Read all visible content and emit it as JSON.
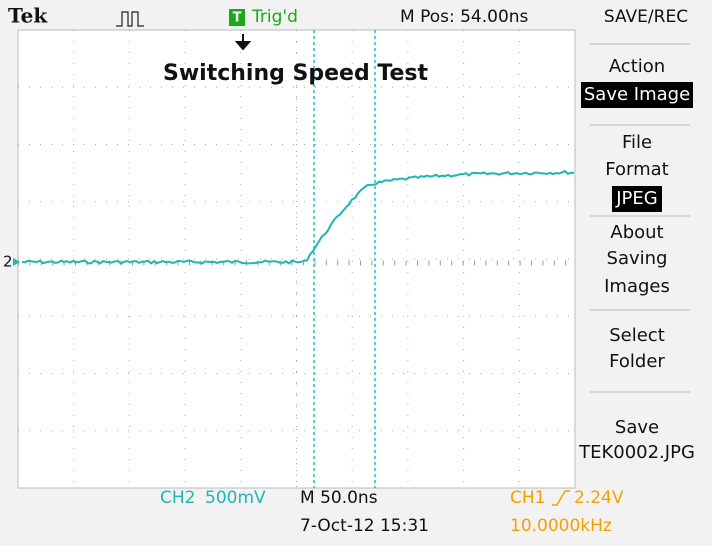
{
  "header": {
    "brand": "Tek",
    "trigger_badge": "T",
    "trigger_status": "Trig'd",
    "position": "M Pos: 54.00ns",
    "menu_title": "SAVE/REC"
  },
  "screen": {
    "title": "Switching Speed Test",
    "channel_marker": "2"
  },
  "menu": [
    {
      "lines": [
        "Action"
      ],
      "highlight": "Save Image"
    },
    {
      "lines": [
        "File",
        "Format"
      ],
      "highlight": "JPEG"
    },
    {
      "lines": [
        "About",
        "Saving",
        "Images"
      ]
    },
    {
      "lines": [
        "Select",
        "Folder"
      ]
    },
    {
      "lines": [
        "Save",
        "TEK0002.JPG"
      ]
    }
  ],
  "footer": {
    "ch2": "CH2",
    "ch2_scale": "500mV",
    "timebase": "M 50.0ns",
    "datetime": "7-Oct-12 15:31",
    "ch1": "CH1",
    "trigger_level": "2.24V",
    "frequency": "10.0000kHz"
  }
}
